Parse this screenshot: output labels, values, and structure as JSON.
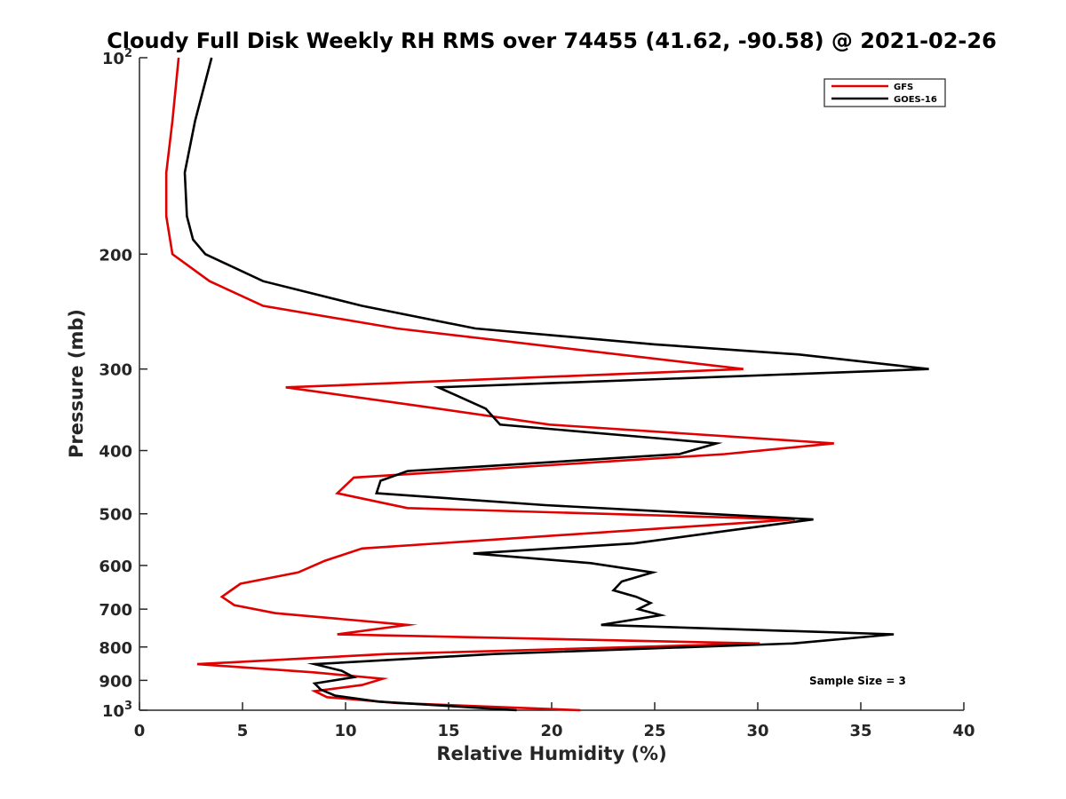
{
  "chart_data": {
    "type": "line",
    "title": "Cloudy Full Disk Weekly RH RMS over 74455 (41.62, -90.58) @ 2021-02-26",
    "xlabel": "Relative Humidity (%)",
    "ylabel": "Pressure (mb)",
    "xlim": [
      0,
      40
    ],
    "ylim": [
      1000,
      100
    ],
    "yscale": "log",
    "y_inverted": true,
    "grid": false,
    "legend_position": "top-right",
    "annotation": "Sample Size = 3",
    "x_ticks": [
      "0",
      "5",
      "10",
      "15",
      "20",
      "25",
      "30",
      "35",
      "40"
    ],
    "x_tick_values": [
      0,
      5,
      10,
      15,
      20,
      25,
      30,
      35,
      40
    ],
    "y_ticks": [
      {
        "value": 100,
        "base": "10",
        "exp": "2"
      },
      {
        "value": 200,
        "label": "200"
      },
      {
        "value": 300,
        "label": "300"
      },
      {
        "value": 400,
        "label": "400"
      },
      {
        "value": 500,
        "label": "500"
      },
      {
        "value": 600,
        "label": "600"
      },
      {
        "value": 700,
        "label": "700"
      },
      {
        "value": 800,
        "label": "800"
      },
      {
        "value": 900,
        "label": "900"
      },
      {
        "value": 1000,
        "base": "10",
        "exp": "3"
      }
    ],
    "series": [
      {
        "name": "GFS",
        "color": "#e00000",
        "x": [
          1.9,
          1.6,
          1.3,
          1.3,
          1.6,
          3.4,
          6.0,
          12.5,
          29.3,
          7.1,
          14.5,
          19.9,
          33.7,
          28.4,
          10.4,
          9.6,
          13.0,
          31.8,
          10.8,
          9.0,
          7.7,
          4.9,
          4.0,
          4.6,
          6.6,
          13.0,
          9.6,
          30.1,
          12.0,
          2.8,
          8.5,
          11.8,
          10.8,
          8.5,
          9.1,
          12.5,
          21.4
        ],
        "y": [
          100,
          125,
          150,
          175,
          200,
          220,
          240,
          260,
          300,
          320,
          345,
          365,
          390,
          405,
          440,
          465,
          490,
          510,
          565,
          590,
          615,
          640,
          670,
          690,
          710,
          740,
          765,
          790,
          820,
          850,
          875,
          895,
          915,
          935,
          955,
          975,
          1000
        ]
      },
      {
        "name": "GOES-16",
        "color": "#000000",
        "x": [
          3.5,
          2.7,
          2.2,
          2.3,
          2.6,
          3.2,
          6.0,
          10.8,
          16.3,
          25.0,
          32.0,
          38.3,
          14.5,
          16.8,
          17.5,
          28.0,
          26.2,
          13.0,
          11.7,
          11.5,
          19.7,
          32.7,
          28.7,
          24.0,
          16.2,
          21.9,
          24.9,
          23.4,
          23.0,
          24.1,
          24.8,
          24.2,
          25.3,
          22.4,
          36.6,
          31.7,
          17.2,
          8.5,
          9.8,
          10.4,
          8.5,
          8.8,
          9.5,
          11.6,
          18.3
        ],
        "y": [
          100,
          125,
          150,
          175,
          190,
          200,
          220,
          240,
          260,
          275,
          285,
          300,
          320,
          345,
          365,
          390,
          405,
          430,
          445,
          465,
          485,
          510,
          530,
          555,
          575,
          595,
          615,
          635,
          655,
          670,
          685,
          700,
          715,
          740,
          765,
          790,
          820,
          850,
          870,
          890,
          910,
          930,
          950,
          970,
          1000
        ]
      }
    ]
  }
}
